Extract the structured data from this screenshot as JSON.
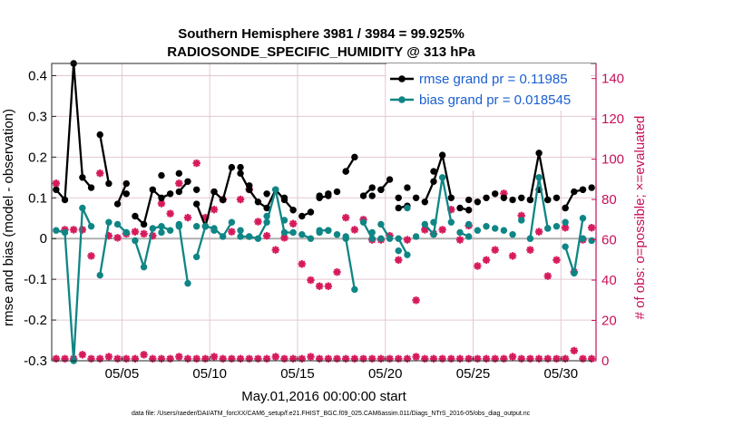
{
  "chart_data": {
    "type": "line",
    "title_line1": "Southern Hemisphere 3981 / 3984 = 99.925%",
    "title_line2": "RADIOSONDE_SPECIFIC_HUMIDITY @ 313 hPa",
    "xlabel": "May.01,2016 00:00:00 start",
    "ylabel": "rmse and bias (model - observation)",
    "y2label": "# of obs: o=possible; ×=evaluated",
    "footnote": "data file: /Users/raeder/DAI/ATM_forcXX/CAM6_setup/f.e21.FHIST_BGC.f09_025.CAM6assim.011/Diags_NTrS_2016-05/obs_diag_output.nc",
    "xlim": [
      1,
      32
    ],
    "ylim": [
      -0.3,
      0.43
    ],
    "y2lim": [
      0,
      147.5
    ],
    "xticks": [
      5,
      10,
      15,
      20,
      25,
      30
    ],
    "xtick_labels": [
      "05/05",
      "05/10",
      "05/15",
      "05/20",
      "05/25",
      "05/30"
    ],
    "yticks": [
      -0.3,
      -0.2,
      -0.1,
      0,
      0.1,
      0.2,
      0.3,
      0.4
    ],
    "ytick_labels": [
      "-0.3",
      "-0.2",
      "-0.1",
      "0",
      "0.1",
      "0.2",
      "0.3",
      "0.4"
    ],
    "y2ticks": [
      0,
      20,
      40,
      60,
      80,
      100,
      120,
      140
    ],
    "y2tick_labels": [
      "0",
      "20",
      "40",
      "60",
      "80",
      "100",
      "120",
      "140"
    ],
    "grid": true,
    "legend_position": "top-right",
    "colors": {
      "rmse": "#000000",
      "bias": "#0f8585",
      "counts": "#d61a5c",
      "axis2": "#c8105a",
      "legend_text": "#1a5fd0",
      "grid": "#e3c7d4",
      "zero_line": "#b0b0b0"
    },
    "series": [
      {
        "name": "rmse grand pr = 0.11985",
        "key": "rmse",
        "segments": [
          {
            "x": [
              1.25,
              1.75,
              2.25,
              2.75,
              3.25
            ],
            "y": [
              0.12,
              0.095,
              0.43,
              0.15,
              0.125
            ]
          },
          {
            "x": [
              3.75,
              4.25
            ],
            "y": [
              0.255,
              0.135
            ]
          },
          {
            "x": [
              4.75,
              5.25
            ],
            "y": [
              0.085,
              0.135
            ]
          },
          {
            "x": [
              5.75,
              6.25,
              6.75,
              7.25,
              7.75
            ],
            "y": [
              0.055,
              0.035,
              0.12,
              0.1,
              0.11
            ]
          },
          {
            "x": [
              8.25,
              8.75
            ],
            "y": [
              0.115,
              0.14
            ]
          },
          {
            "x": [
              9.25,
              9.75,
              10.25,
              10.75,
              11.25
            ],
            "y": [
              0.085,
              0.03,
              0.115,
              0.095,
              0.175
            ]
          },
          {
            "x": [
              11.75,
              12.25,
              12.75,
              13.25,
              13.75,
              14.25,
              14.75
            ],
            "y": [
              0.16,
              0.12,
              0.09,
              0.075,
              0.12,
              0.095,
              0.07
            ]
          },
          {
            "x": [
              15.25,
              15.75
            ],
            "y": [
              0.055,
              0.065
            ]
          },
          {
            "x": [
              16.25,
              16.75
            ],
            "y": [
              0.1,
              0.105
            ]
          },
          {
            "x": [
              17.75,
              18.25
            ],
            "y": [
              0.165,
              0.2
            ]
          },
          {
            "x": [
              18.75,
              19.25
            ],
            "y": [
              0.105,
              0.125
            ]
          },
          {
            "x": [
              19.75,
              20.25
            ],
            "y": [
              0.12,
              0.145
            ]
          },
          {
            "x": [
              20.75,
              21.25
            ],
            "y": [
              0.075,
              0.08
            ]
          },
          {
            "x": [
              22.25,
              22.75,
              23.25,
              23.75
            ],
            "y": [
              0.09,
              0.14,
              0.205,
              0.1
            ]
          },
          {
            "x": [
              24.25,
              24.75
            ],
            "y": [
              0.075,
              0.07
            ]
          }
        ],
        "isolated": [
          {
            "x": 5.25,
            "y": 0.11
          },
          {
            "x": 7.25,
            "y": 0.155
          },
          {
            "x": 8.25,
            "y": 0.16
          },
          {
            "x": 9.25,
            "y": 0.12
          },
          {
            "x": 10.25,
            "y": 0.115
          },
          {
            "x": 11.75,
            "y": 0.175
          },
          {
            "x": 12.25,
            "y": 0.13
          },
          {
            "x": 13.25,
            "y": 0.11
          },
          {
            "x": 14.25,
            "y": 0.1
          },
          {
            "x": 16.25,
            "y": 0.105
          },
          {
            "x": 16.75,
            "y": 0.11
          },
          {
            "x": 17.25,
            "y": 0.115
          },
          {
            "x": 17.75,
            "y": 0.165
          },
          {
            "x": 19.25,
            "y": 0.105
          },
          {
            "x": 19.75,
            "y": 0.12
          },
          {
            "x": 20.75,
            "y": 0.1
          },
          {
            "x": 21.25,
            "y": 0.125
          },
          {
            "x": 21.75,
            "y": 0.1
          },
          {
            "x": 22.75,
            "y": 0.165
          },
          {
            "x": 24.75,
            "y": 0.095
          },
          {
            "x": 25.25,
            "y": 0.09
          },
          {
            "x": 25.75,
            "y": 0.1
          },
          {
            "x": 26.25,
            "y": 0.11
          },
          {
            "x": 26.75,
            "y": 0.1
          },
          {
            "x": 27.25,
            "y": 0.095
          },
          {
            "x": 27.75,
            "y": 0.1
          },
          {
            "x": 28.25,
            "y": 0.095
          },
          {
            "x": 28.75,
            "y": 0.12
          },
          {
            "x": 29.25,
            "y": 0.095
          },
          {
            "x": 29.75,
            "y": 0.1
          },
          {
            "x": 30.25,
            "y": 0.075
          },
          {
            "x": 31.25,
            "y": 0.12
          },
          {
            "x": 31.75,
            "y": 0.125
          }
        ],
        "extra_segments": [
          {
            "x": [
              28.25,
              28.75,
              29.25
            ],
            "y": [
              0.095,
              0.21,
              0.095
            ]
          },
          {
            "x": [
              30.25,
              30.75,
              31.25
            ],
            "y": [
              0.075,
              0.115,
              0.12
            ]
          }
        ]
      },
      {
        "name": "bias grand pr = 0.018545",
        "key": "bias",
        "segments": [
          {
            "x": [
              1.25,
              1.75,
              2.25,
              2.75,
              3.25
            ],
            "y": [
              0.02,
              0.015,
              -0.3,
              0.075,
              0.03
            ]
          },
          {
            "x": [
              3.75,
              4.25
            ],
            "y": [
              -0.09,
              0.04
            ]
          },
          {
            "x": [
              4.75,
              5.25
            ],
            "y": [
              0.035,
              0.015
            ]
          },
          {
            "x": [
              5.75,
              6.25,
              6.75,
              7.25,
              7.75
            ],
            "y": [
              -0.005,
              -0.07,
              0.025,
              0.03,
              0.02
            ]
          },
          {
            "x": [
              8.25,
              8.75
            ],
            "y": [
              0.035,
              -0.11
            ]
          },
          {
            "x": [
              9.25,
              9.75,
              10.25,
              10.75,
              11.25
            ],
            "y": [
              -0.045,
              0.03,
              0.025,
              0.005,
              0.04
            ]
          },
          {
            "x": [
              11.75,
              12.25,
              12.75,
              13.25,
              13.75,
              14.25,
              14.75
            ],
            "y": [
              0.005,
              0.005,
              0.0,
              0.04,
              0.12,
              0.015,
              0.015
            ]
          },
          {
            "x": [
              15.25,
              15.75
            ],
            "y": [
              0.01,
              0.0
            ]
          },
          {
            "x": [
              16.25,
              16.75
            ],
            "y": [
              0.02,
              0.02
            ]
          },
          {
            "x": [
              17.75,
              18.25
            ],
            "y": [
              0.0,
              -0.125
            ]
          },
          {
            "x": [
              18.75,
              19.25
            ],
            "y": [
              0.04,
              0.0
            ]
          },
          {
            "x": [
              19.75,
              20.25
            ],
            "y": [
              0.035,
              0.0
            ]
          },
          {
            "x": [
              20.75,
              21.25
            ],
            "y": [
              0.0,
              -0.04
            ]
          },
          {
            "x": [
              22.25,
              22.75,
              23.25,
              23.75
            ],
            "y": [
              0.035,
              0.01,
              0.15,
              0.04
            ]
          },
          {
            "x": [
              24.25,
              24.75
            ],
            "y": [
              0.015,
              0.005
            ]
          }
        ],
        "isolated": [
          {
            "x": 5.25,
            "y": 0.015
          },
          {
            "x": 7.25,
            "y": 0.015
          },
          {
            "x": 8.25,
            "y": 0.03
          },
          {
            "x": 9.25,
            "y": 0.03
          },
          {
            "x": 10.25,
            "y": 0.02
          },
          {
            "x": 11.75,
            "y": 0.02
          },
          {
            "x": 12.25,
            "y": 0.005
          },
          {
            "x": 13.25,
            "y": 0.055
          },
          {
            "x": 14.25,
            "y": 0.045
          },
          {
            "x": 16.25,
            "y": 0.015
          },
          {
            "x": 16.75,
            "y": 0.02
          },
          {
            "x": 17.25,
            "y": 0.01
          },
          {
            "x": 17.75,
            "y": 0.005
          },
          {
            "x": 19.25,
            "y": 0.015
          },
          {
            "x": 19.75,
            "y": 0.0
          },
          {
            "x": 20.75,
            "y": -0.03
          },
          {
            "x": 21.25,
            "y": 0.075
          },
          {
            "x": 21.75,
            "y": 0.005
          },
          {
            "x": 22.75,
            "y": 0.04
          },
          {
            "x": 24.75,
            "y": 0.035
          },
          {
            "x": 25.25,
            "y": 0.02
          },
          {
            "x": 25.75,
            "y": 0.03
          },
          {
            "x": 26.25,
            "y": 0.025
          },
          {
            "x": 26.75,
            "y": 0.02
          },
          {
            "x": 27.25,
            "y": 0.01
          },
          {
            "x": 27.75,
            "y": 0.045
          },
          {
            "x": 28.25,
            "y": 0.0
          },
          {
            "x": 28.75,
            "y": 0.15
          },
          {
            "x": 29.25,
            "y": 0.025
          },
          {
            "x": 29.75,
            "y": 0.03
          },
          {
            "x": 30.25,
            "y": 0.04
          },
          {
            "x": 31.25,
            "y": 0.0
          },
          {
            "x": 31.75,
            "y": -0.005
          }
        ],
        "extra_segments": [
          {
            "x": [
              28.25,
              28.75,
              29.25
            ],
            "y": [
              0.0,
              0.15,
              0.025
            ]
          },
          {
            "x": [
              30.25,
              30.75,
              31.25
            ],
            "y": [
              -0.02,
              -0.085,
              0.05
            ]
          }
        ]
      }
    ],
    "counts_evaluated": {
      "name": "# of obs evaluated",
      "x": [
        1.25,
        1.75,
        2.25,
        2.75,
        3.25,
        3.75,
        4.25,
        4.75,
        5.25,
        5.75,
        6.25,
        6.75,
        7.25,
        7.75,
        8.25,
        8.75,
        9.25,
        9.75,
        10.25,
        10.75,
        11.25,
        11.75,
        12.25,
        12.75,
        13.25,
        13.75,
        14.25,
        14.75,
        15.25,
        15.75,
        16.25,
        16.75,
        17.25,
        17.75,
        18.25,
        18.75,
        19.25,
        19.75,
        20.25,
        20.75,
        21.25,
        21.75,
        22.25,
        22.75,
        23.25,
        23.75,
        24.25,
        24.75,
        25.25,
        25.75,
        26.25,
        26.75,
        27.25,
        27.75,
        28.25,
        28.75,
        29.25,
        29.75,
        30.25,
        30.75,
        31.25,
        31.75
      ],
      "y": [
        88,
        65,
        65,
        65,
        52,
        93,
        62,
        61,
        63,
        64,
        63,
        62,
        78,
        73,
        88,
        71,
        98,
        71,
        75,
        80,
        64,
        80,
        85,
        69,
        62,
        55,
        61,
        68,
        48,
        40,
        37,
        37,
        44,
        71,
        65,
        70,
        60,
        60,
        62,
        50,
        60,
        30,
        65,
        63,
        65,
        75,
        60,
        67,
        47,
        50,
        55,
        83,
        52,
        72,
        55,
        64,
        42,
        50,
        66,
        44,
        60,
        66
      ]
    },
    "counts_possible": {
      "name": "# of obs possible",
      "x": [
        1.25,
        1.75,
        2.25,
        2.75,
        3.25,
        3.75,
        4.25,
        4.75,
        5.25,
        5.75,
        6.25,
        6.75,
        7.25,
        7.75,
        8.25,
        8.75,
        9.25,
        9.75,
        10.25,
        10.75,
        11.25,
        11.75,
        12.25,
        12.75,
        13.25,
        13.75,
        14.25,
        14.75,
        15.25,
        15.75,
        16.25,
        16.75,
        17.25,
        17.75,
        18.25,
        18.75,
        19.25,
        19.75,
        20.25,
        20.75,
        21.25,
        21.75,
        22.25,
        22.75,
        23.25,
        23.75,
        24.25,
        24.75,
        25.25,
        25.75,
        26.25,
        26.75,
        27.25,
        27.75,
        28.25,
        28.75,
        29.25,
        29.75,
        30.25,
        30.75,
        31.25,
        31.75
      ],
      "y": [
        1,
        1,
        1,
        3,
        1,
        1,
        2,
        1,
        1,
        1,
        3,
        1,
        1,
        1,
        2,
        1,
        1,
        1,
        2,
        1,
        1,
        1,
        1,
        1,
        1,
        2,
        1,
        1,
        1,
        2,
        1,
        1,
        1,
        1,
        1,
        1,
        1,
        1,
        1,
        1,
        1,
        2,
        1,
        1,
        1,
        1,
        1,
        1,
        1,
        1,
        1,
        1,
        2,
        1,
        1,
        1,
        1,
        1,
        1,
        5,
        1,
        1
      ]
    }
  }
}
